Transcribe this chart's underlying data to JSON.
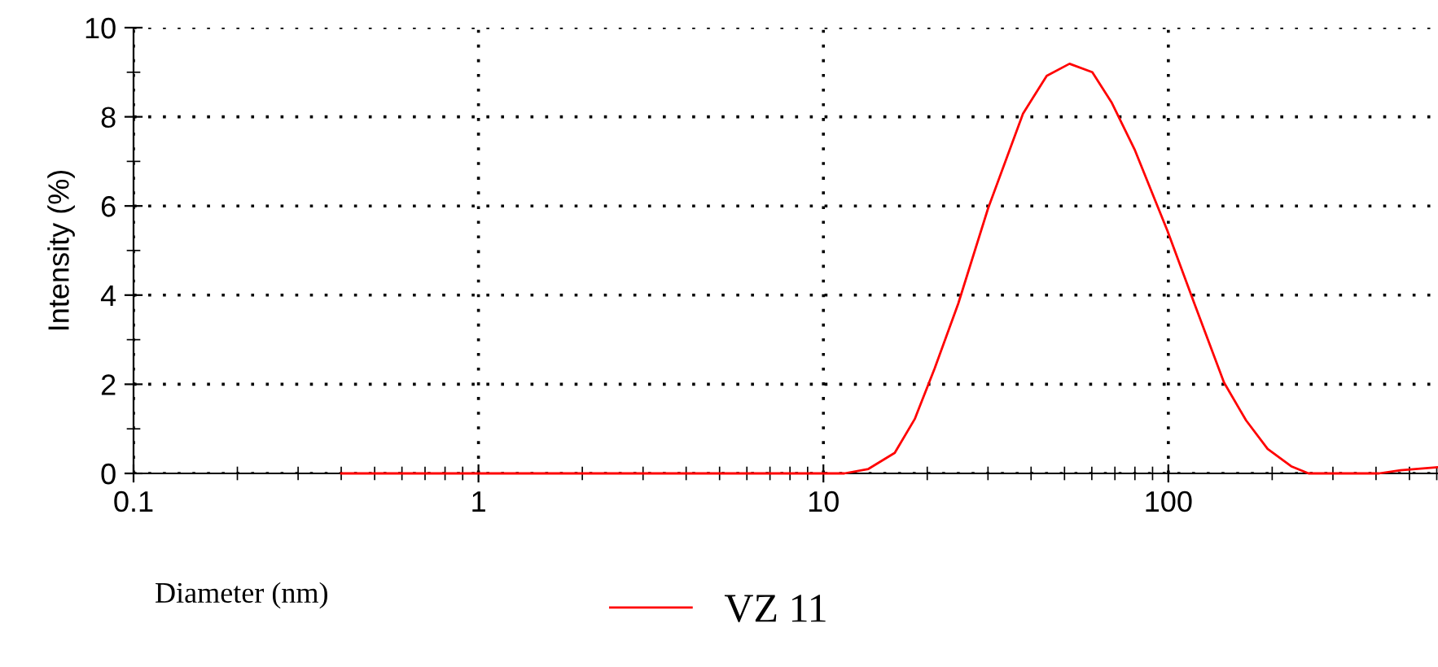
{
  "chart_data": {
    "type": "line",
    "xlabel": "Diameter (nm)",
    "ylabel": "Intensity (%)",
    "log": "x",
    "xlim": [
      0.1,
      605
    ],
    "xticks": [
      0.1,
      1,
      10,
      100
    ],
    "ylim": [
      0,
      10
    ],
    "yticks": [
      0,
      2,
      4,
      6,
      8,
      10
    ],
    "grid": true,
    "legend": "bottom",
    "line_style": "solid",
    "marker": "none",
    "series": [
      {
        "name": "VZ 11",
        "color": "#ff0000",
        "x": [
          0.4,
          1,
          5,
          11.5,
          13.5,
          16.1,
          18.4,
          21.0,
          24.6,
          30.0,
          37.9,
          44.4,
          51.7,
          60.2,
          68.6,
          79.8,
          99.3,
          119,
          145,
          168,
          194,
          227,
          255,
          408,
          471,
          605
        ],
        "values": [
          0,
          0,
          0,
          0,
          0.1,
          0.46,
          1.22,
          2.35,
          3.81,
          5.94,
          8.07,
          8.92,
          9.19,
          9.0,
          8.31,
          7.27,
          5.45,
          3.81,
          2.04,
          1.19,
          0.55,
          0.16,
          0,
          0,
          0.07,
          0.14
        ]
      }
    ]
  }
}
